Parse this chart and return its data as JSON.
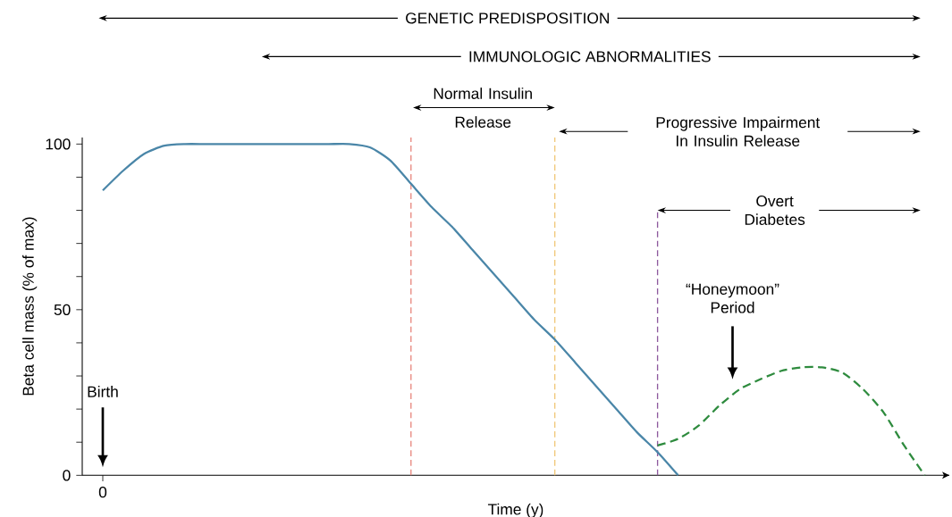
{
  "chart_data": {
    "type": "line",
    "xlabel": "Time (y)",
    "ylabel": "Beta cell mass (% of max)",
    "categories": [
      "0",
      null,
      null,
      null,
      null,
      null,
      null,
      null,
      null,
      null,
      null,
      null,
      null,
      null,
      null,
      null,
      null,
      null,
      null,
      null,
      null,
      null,
      null,
      null,
      null,
      null,
      null,
      null,
      null,
      null,
      null,
      null,
      null,
      null,
      null,
      null,
      null,
      null,
      null,
      null,
      null
    ],
    "series": [
      {
        "color": "#4a86a8",
        "line_style": "solid",
        "values": [
          86,
          92,
          97,
          99.5,
          100,
          100,
          100,
          100,
          100,
          100,
          100,
          100,
          100,
          99,
          95,
          88,
          81,
          75,
          68,
          61,
          54,
          47,
          41,
          34,
          27,
          20,
          13,
          7,
          0,
          null,
          null,
          null,
          null,
          null,
          null,
          null,
          null,
          null,
          null,
          null,
          null
        ]
      },
      {
        "color": "#2e8b3e",
        "line_style": "dashed",
        "values": [
          null,
          null,
          null,
          null,
          null,
          null,
          null,
          null,
          null,
          null,
          null,
          null,
          null,
          null,
          null,
          null,
          null,
          null,
          null,
          null,
          null,
          null,
          null,
          null,
          null,
          null,
          null,
          9,
          11,
          15,
          21,
          26,
          29,
          31.5,
          32.6,
          32.6,
          31,
          26,
          19,
          9,
          0
        ]
      }
    ],
    "ylim": [
      0,
      102
    ],
    "yticks": [
      0,
      {
        "value": 10,
        "label": null
      },
      {
        "value": 20,
        "label": null
      },
      {
        "value": 30,
        "label": null
      },
      {
        "value": 40,
        "label": null
      },
      50,
      {
        "value": 60,
        "label": null
      },
      {
        "value": 70,
        "label": null
      },
      {
        "value": 80,
        "label": null
      },
      {
        "value": 90,
        "label": null
      },
      100
    ],
    "annotations": [
      "GENETIC PREDISPOSITION",
      "IMMUNOLOGIC ABNORMALITIES",
      "Normal Insulin Release",
      "Progressive Impairment In Insulin Release",
      "Overt Diabetes",
      "“Honeymoon” Period",
      "Birth"
    ],
    "grid": false,
    "marker": "none"
  }
}
